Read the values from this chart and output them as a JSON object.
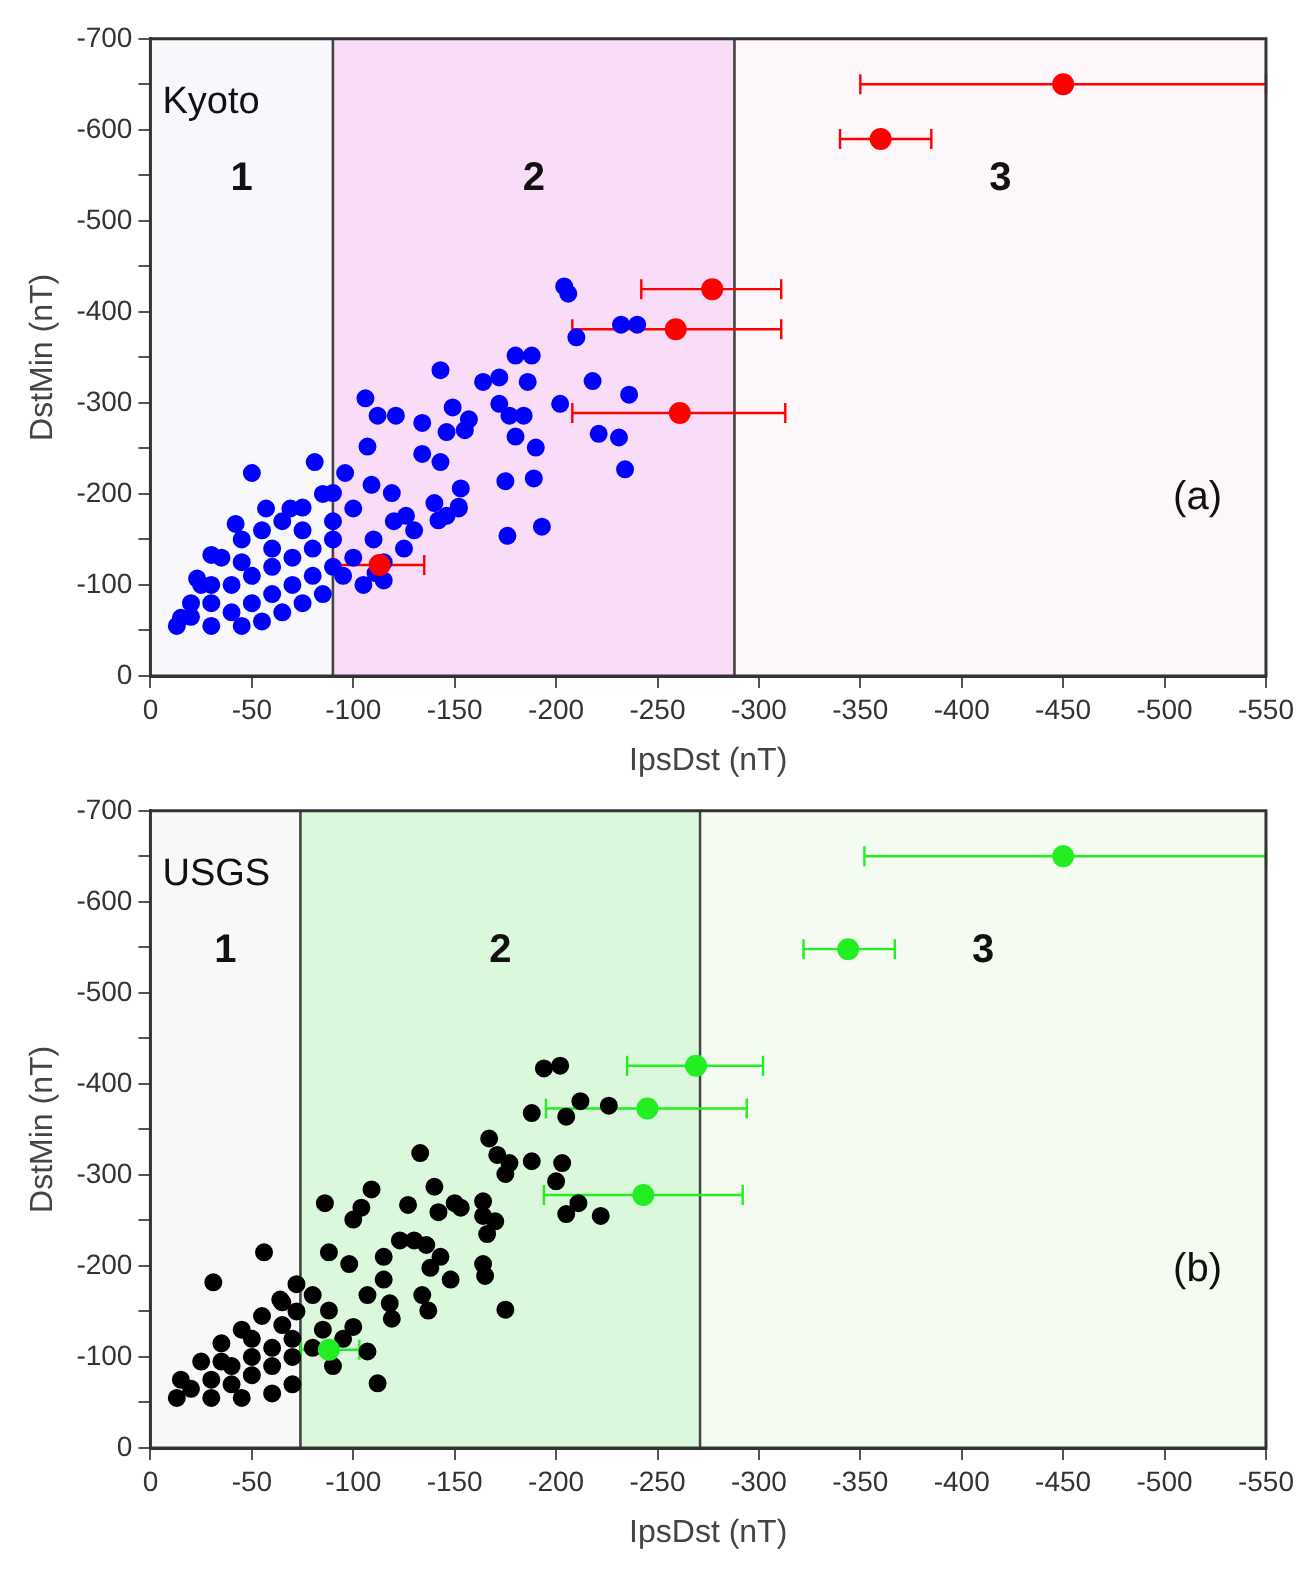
{
  "chart_data": [
    {
      "type": "scatter",
      "xlabel": "IpsDst (nT)",
      "ylabel": "DstMin (nT)",
      "marker": "circle",
      "xlim": [
        0,
        -550
      ],
      "xticks": [
        0,
        -50,
        -100,
        -150,
        -200,
        -250,
        -300,
        -350,
        -400,
        -450,
        -500,
        -550
      ],
      "ylim": [
        0,
        -700
      ],
      "yticks": [
        0,
        {
          "value": -50,
          "label": null
        },
        -100,
        {
          "value": -150,
          "label": null
        },
        -200,
        {
          "value": -250,
          "label": null
        },
        -300,
        {
          "value": -350,
          "label": null
        },
        -400,
        {
          "value": -450,
          "label": null
        },
        -500,
        {
          "value": -550,
          "label": null
        },
        -600,
        {
          "value": -650,
          "label": null
        },
        -700
      ],
      "annotations": [
        "Kyoto",
        "(a)"
      ],
      "bands": [
        {
          "axis": "x",
          "from": 0,
          "to": -90,
          "label": "1",
          "color": "#f8f8fc"
        },
        {
          "axis": "x",
          "from": -90,
          "to": -288,
          "label": "2",
          "color": "#f8dcf8"
        },
        {
          "axis": "x",
          "from": -288,
          "to": -550,
          "label": "3",
          "color": "#fdf6fb"
        }
      ],
      "series": [
        {
          "type": "scatter",
          "color": "#0000ff",
          "x": [
            -204,
            -206,
            -210,
            -232,
            -240,
            -180,
            -188,
            -143,
            -164,
            -172,
            -186,
            -218,
            -236,
            -202,
            -172,
            -177,
            -184,
            -149,
            -157,
            -155,
            -146,
            -106,
            -112,
            -121,
            -134,
            -107,
            -180,
            -190,
            -221,
            -231,
            -234,
            -175,
            -189,
            -193,
            -176,
            -143,
            -134,
            -153,
            -152,
            -142,
            -126,
            -119,
            -109,
            -96,
            -81,
            -50,
            -100,
            -90,
            -69,
            -57,
            -42,
            -30,
            -23,
            -15,
            -111,
            -146,
            -152,
            -13,
            -30,
            -45,
            -55,
            -65,
            -75,
            -85,
            -20,
            -25,
            -35,
            -45,
            -55,
            -65,
            -75,
            -85,
            -20,
            -30,
            -40,
            -50,
            -60,
            -70,
            -80,
            -90,
            -40,
            -50,
            -60,
            -70,
            -80,
            -90,
            -30,
            -45,
            -60,
            -75,
            -90,
            -95,
            -100,
            -110,
            -105,
            -115,
            -120,
            -130,
            -140,
            -125,
            -115
          ],
          "values": [
            -428,
            -420,
            -372,
            -386,
            -386,
            -352,
            -352,
            -336,
            -323,
            -328,
            -323,
            -324,
            -309,
            -299,
            -299,
            -286,
            -286,
            -295,
            -282,
            -270,
            -268,
            -305,
            -286,
            -286,
            -278,
            -252,
            -263,
            -251,
            -266,
            -262,
            -227,
            -214,
            -217,
            -164,
            -154,
            -235,
            -244,
            -206,
            -184,
            -171,
            -176,
            -201,
            -210,
            -223,
            -235,
            -223,
            -184,
            -201,
            -184,
            -184,
            -167,
            -133,
            -107,
            -64,
            -113,
            -176,
            -186,
            -55,
            -55,
            -55,
            -60,
            -70,
            -80,
            -90,
            -80,
            -100,
            -130,
            -150,
            -160,
            -170,
            -185,
            -200,
            -65,
            -80,
            -100,
            -110,
            -120,
            -130,
            -140,
            -150,
            -70,
            -80,
            -90,
            -100,
            -110,
            -120,
            -100,
            -125,
            -140,
            -160,
            -170,
            -110,
            -130,
            -150,
            -100,
            -125,
            -170,
            -160,
            -190,
            -140,
            -105
          ]
        },
        {
          "type": "scatter",
          "color": "#ff0000",
          "x": [
            -450,
            -360,
            -277,
            -259,
            -261,
            -113
          ],
          "values": [
            -650,
            -590,
            -425,
            -381,
            -289,
            -122
          ],
          "xerrors": [
            [
              -350,
              -550
            ],
            [
              -340,
              -385
            ],
            [
              -242,
              -311
            ],
            [
              -208,
              -311
            ],
            [
              -208,
              -313
            ],
            [
              -90,
              -135
            ]
          ]
        }
      ]
    },
    {
      "type": "scatter",
      "xlabel": "IpsDst (nT)",
      "ylabel": "DstMin (nT)",
      "marker": "circle",
      "xlim": [
        0,
        -550
      ],
      "xticks": [
        0,
        -50,
        -100,
        -150,
        -200,
        -250,
        -300,
        -350,
        -400,
        -450,
        -500,
        -550
      ],
      "ylim": [
        0,
        -700
      ],
      "yticks": [
        0,
        {
          "value": -50,
          "label": null
        },
        -100,
        {
          "value": -150,
          "label": null
        },
        -200,
        {
          "value": -250,
          "label": null
        },
        -300,
        {
          "value": -350,
          "label": null
        },
        -400,
        {
          "value": -450,
          "label": null
        },
        -500,
        {
          "value": -550,
          "label": null
        },
        -600,
        {
          "value": -650,
          "label": null
        },
        -700
      ],
      "annotations": [
        "USGS",
        "(b)"
      ],
      "bands": [
        {
          "axis": "x",
          "from": 0,
          "to": -74,
          "label": "1",
          "color": "#f8f8f8"
        },
        {
          "axis": "x",
          "from": -74,
          "to": -271,
          "label": "2",
          "color": "#dcf8dc"
        },
        {
          "axis": "x",
          "from": -271,
          "to": -550,
          "label": "3",
          "color": "#f4fcf2"
        }
      ],
      "series": [
        {
          "type": "scatter",
          "color": "#000000",
          "x": [
            -194,
            -202,
            -212,
            -226,
            -188,
            -205,
            -167,
            -171,
            -175,
            -177,
            -188,
            -203,
            -200,
            -133,
            -140,
            -109,
            -86,
            -104,
            -100,
            -127,
            -142,
            -150,
            -153,
            -164,
            -164,
            -170,
            -166,
            -205,
            -211,
            -222,
            -123,
            -130,
            -136,
            -143,
            -138,
            -148,
            -134,
            -137,
            -164,
            -165,
            -175,
            -115,
            -115,
            -118,
            -119,
            -88,
            -98,
            -107,
            -100,
            -107,
            -112,
            -88,
            -80,
            -56,
            -31,
            -64,
            -13,
            -30,
            -45,
            -60,
            -70,
            -15,
            -25,
            -35,
            -45,
            -55,
            -65,
            -72,
            -20,
            -30,
            -40,
            -50,
            -60,
            -70,
            -40,
            -50,
            -60,
            -70,
            -35,
            -50,
            -65,
            -72,
            -80,
            -85,
            -90,
            -95
          ],
          "values": [
            -417,
            -420,
            -381,
            -376,
            -368,
            -364,
            -340,
            -322,
            -301,
            -313,
            -315,
            -313,
            -293,
            -324,
            -287,
            -284,
            -269,
            -264,
            -251,
            -267,
            -259,
            -269,
            -264,
            -271,
            -255,
            -249,
            -235,
            -257,
            -269,
            -255,
            -228,
            -228,
            -223,
            -210,
            -198,
            -185,
            -168,
            -151,
            -202,
            -189,
            -152,
            -210,
            -185,
            -159,
            -142,
            -215,
            -202,
            -168,
            -133,
            -106,
            -71,
            -151,
            -168,
            -215,
            -182,
            -163,
            -55,
            -55,
            -55,
            -60,
            -70,
            -75,
            -95,
            -115,
            -130,
            -145,
            -160,
            -180,
            -65,
            -75,
            -90,
            -100,
            -110,
            -120,
            -70,
            -80,
            -90,
            -100,
            -95,
            -120,
            -135,
            -150,
            -110,
            -130,
            -90,
            -120
          ]
        },
        {
          "type": "scatter",
          "color": "#22ee22",
          "x": [
            -450,
            -344,
            -269,
            -245,
            -243,
            -88
          ],
          "values": [
            -650,
            -548,
            -420,
            -373,
            -278,
            -108
          ],
          "xerrors": [
            [
              -352,
              -550
            ],
            [
              -322,
              -367
            ],
            [
              -235,
              -302
            ],
            [
              -195,
              -294
            ],
            [
              -194,
              -292
            ],
            [
              -74,
              -103
            ]
          ]
        }
      ]
    }
  ]
}
